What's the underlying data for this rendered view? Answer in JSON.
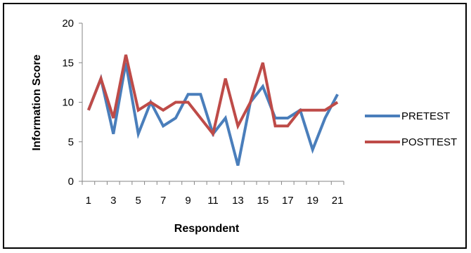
{
  "chart_data": {
    "type": "line",
    "title": "",
    "xlabel": "Respondent",
    "ylabel": "Information Score",
    "x": [
      1,
      2,
      3,
      4,
      5,
      6,
      7,
      8,
      9,
      10,
      11,
      12,
      13,
      14,
      15,
      16,
      17,
      18,
      19,
      20,
      21
    ],
    "x_tick_labels": [
      "1",
      "3",
      "5",
      "7",
      "9",
      "11",
      "13",
      "15",
      "17",
      "19",
      "21"
    ],
    "y_ticks": [
      0,
      5,
      10,
      15,
      20
    ],
    "ylim": [
      0,
      20
    ],
    "xlim": [
      0.5,
      21.5
    ],
    "grid": false,
    "legend_position": "right",
    "series": [
      {
        "name": "PRETEST",
        "color": "#4a7ebb",
        "values": [
          9,
          13,
          6,
          15,
          6,
          10,
          7,
          8,
          11,
          11,
          6,
          8,
          2,
          10,
          12,
          8,
          8,
          9,
          4,
          8,
          11
        ]
      },
      {
        "name": "POSTTEST",
        "color": "#be4b48",
        "values": [
          9,
          13,
          8,
          16,
          9,
          10,
          9,
          10,
          10,
          8,
          6,
          13,
          7,
          10,
          15,
          7,
          7,
          9,
          9,
          9,
          10
        ]
      }
    ]
  }
}
